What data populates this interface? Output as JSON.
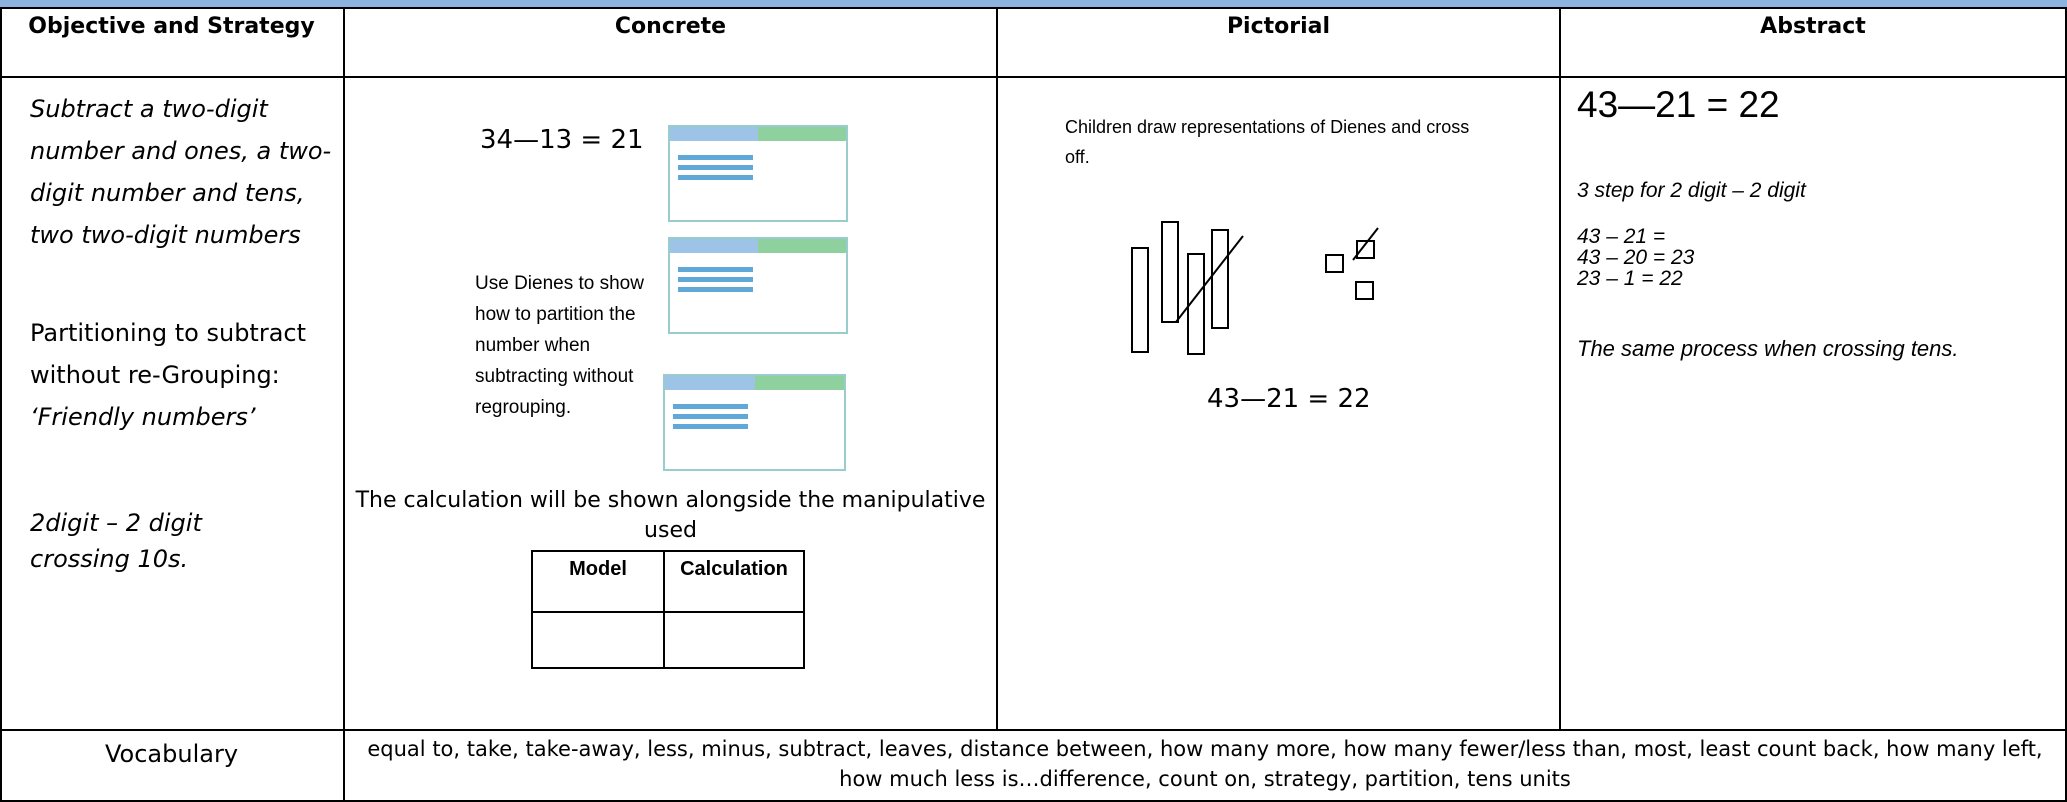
{
  "table": {
    "headers": [
      "Objective and Strategy",
      "Concrete",
      "Pictorial",
      "Abstract"
    ],
    "objective": {
      "intro": "Subtract a two-digit number and ones, a two-digit number and tens, two two-digit numbers",
      "partitioning": "Partitioning to subtract without re-Grouping:",
      "friendly": "‘Friendly numbers’",
      "crossing": "2digit – 2 digit crossing 10s."
    },
    "concrete": {
      "equation": "34—13 = 21",
      "note": "Use Dienes to show how to partition the number when subtracting without regrouping.",
      "caption": "The calculation will be shown alongside the manipulative used",
      "mini_table": [
        "Model",
        "Calculation"
      ]
    },
    "pictorial": {
      "note": "Children draw representations of Dienes and cross off.",
      "equation": "43—21 = 22"
    },
    "abstract": {
      "equation": "43—21 = 22",
      "heading": "3 step for 2 digit – 2 digit",
      "steps": [
        "43 – 21 =",
        "43 – 20 = 23",
        "23 – 1 = 22"
      ],
      "note": "The same process when crossing tens."
    },
    "vocabulary": {
      "label": "Vocabulary",
      "text": "equal to, take, take-away, less, minus, subtract, leaves, distance between, how many more, how many fewer/less than, most, least count back, how many left, how much less is…difference, count on, strategy, partition, tens units"
    }
  }
}
